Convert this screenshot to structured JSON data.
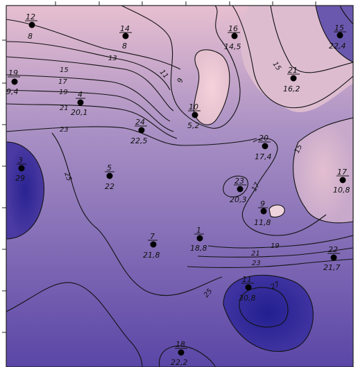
{
  "map": {
    "colors": {
      "low": "#f1cdd6",
      "mid": "#9a82bd",
      "high": "#2c2492",
      "line": "#111111",
      "station": "#000000"
    },
    "contour_labels": [
      {
        "id": "c13",
        "text": "13"
      },
      {
        "id": "c15a",
        "text": "15"
      },
      {
        "id": "c17a",
        "text": "17"
      },
      {
        "id": "c19a",
        "text": "19"
      },
      {
        "id": "c21a",
        "text": "21"
      },
      {
        "id": "c23a",
        "text": "23"
      },
      {
        "id": "c25a",
        "text": "25"
      },
      {
        "id": "c11",
        "text": "11"
      },
      {
        "id": "c9",
        "text": "9"
      },
      {
        "id": "c15b",
        "text": "15"
      },
      {
        "id": "c15c",
        "text": "15"
      },
      {
        "id": "c17b",
        "text": "17"
      },
      {
        "id": "c19b",
        "text": "19"
      },
      {
        "id": "c21b",
        "text": "21"
      },
      {
        "id": "c23b",
        "text": "23"
      },
      {
        "id": "c25b",
        "text": "25"
      },
      {
        "id": "c27",
        "text": "27"
      }
    ],
    "stations": [
      {
        "id": "12",
        "number": "12",
        "value": "8"
      },
      {
        "id": "14",
        "number": "14",
        "value": "8"
      },
      {
        "id": "16",
        "number": "16",
        "value": "14,5"
      },
      {
        "id": "15",
        "number": "15",
        "value": "22,4"
      },
      {
        "id": "19",
        "number": "19",
        "value": "9,4"
      },
      {
        "id": "4",
        "number": "4",
        "value": "20,1"
      },
      {
        "id": "10",
        "number": "10",
        "value": "5,2"
      },
      {
        "id": "21",
        "number": "21",
        "value": "16,2"
      },
      {
        "id": "24",
        "number": "24",
        "value": "22,5"
      },
      {
        "id": "20",
        "number": "20",
        "value": "17,4"
      },
      {
        "id": "3",
        "number": "3",
        "value": "29"
      },
      {
        "id": "5",
        "number": "5",
        "value": "22"
      },
      {
        "id": "23",
        "number": "23",
        "value": "20,3"
      },
      {
        "id": "17",
        "number": "17",
        "value": "10,8"
      },
      {
        "id": "9",
        "number": "9",
        "value": "11,8"
      },
      {
        "id": "1",
        "number": "1",
        "value": "18,8"
      },
      {
        "id": "7",
        "number": "7",
        "value": "21,8"
      },
      {
        "id": "22",
        "number": "22",
        "value": "21,7"
      },
      {
        "id": "11",
        "number": "11",
        "value": "30,8"
      },
      {
        "id": "18",
        "number": "18",
        "value": "22,2"
      }
    ]
  }
}
